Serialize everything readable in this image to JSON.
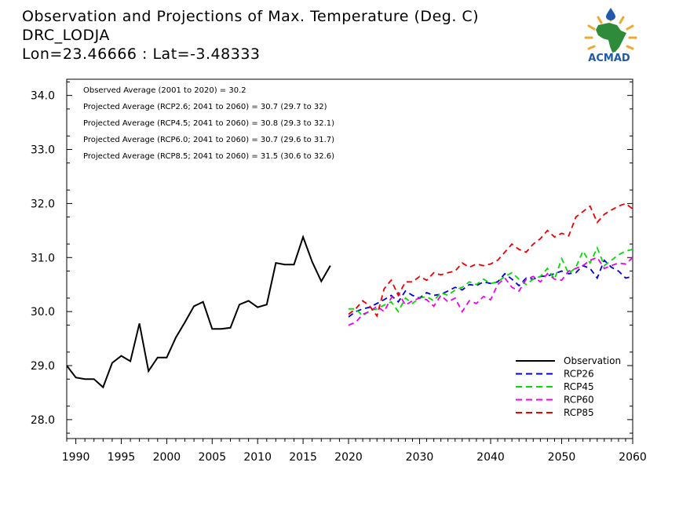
{
  "header": {
    "title_lines": [
      "Observation and Projections of Max. Temperature (Deg. C)",
      "DRC_LODJA",
      "Lon=23.46666 : Lat=-3.48333"
    ],
    "logo_text": "ACMAD"
  },
  "annotations": [
    "Observed Average (2001 to 2020) = 30.2",
    "Projected Average (RCP2.6; 2041 to 2060) = 30.7 (29.7 to 32)",
    "Projected Average (RCP4.5; 2041 to 2060) = 30.8 (29.3 to 32.1)",
    "Projected Average (RCP6.0; 2041 to 2060) = 30.7 (29.6 to 31.7)",
    "Projected Average (RCP8.5; 2041 to 2060) = 31.5 (30.6 to 32.6)"
  ],
  "chart_data": {
    "type": "line",
    "title": "Observation and Projections of Max. Temperature (Deg. C)",
    "subtitle": "DRC_LODJA / Lon=23.46666 : Lat=-3.48333",
    "xlabel": "",
    "ylabel": "",
    "ylim": [
      27.65,
      34.3
    ],
    "y_ticks": [
      28.0,
      29.0,
      30.0,
      31.0,
      32.0,
      33.0,
      34.0
    ],
    "y_tick_labels": [
      "28.0",
      "29.0",
      "30.0",
      "31.0",
      "32.0",
      "33.0",
      "34.0"
    ],
    "x_axis_segments": [
      {
        "range": [
          1989,
          2020
        ],
        "tick_labels": [
          1990,
          1995,
          2000,
          2005,
          2010,
          2015,
          2020
        ]
      },
      {
        "range": [
          2020,
          2060
        ],
        "tick_labels": [
          2030,
          2040,
          2050,
          2060
        ]
      }
    ],
    "grid": false,
    "legend_position": "bottom-right",
    "series": [
      {
        "name": "Observation",
        "color": "#000000",
        "dash": "solid",
        "x": [
          1989,
          1990,
          1991,
          1992,
          1993,
          1994,
          1995,
          1996,
          1997,
          1998,
          1999,
          2000,
          2001,
          2002,
          2003,
          2004,
          2005,
          2006,
          2007,
          2008,
          2009,
          2010,
          2011,
          2012,
          2013,
          2014,
          2015,
          2016,
          2017,
          2018,
          2019
        ],
        "values": [
          29.0,
          28.78,
          28.75,
          28.75,
          28.6,
          29.05,
          29.18,
          29.08,
          29.78,
          28.9,
          29.15,
          29.15,
          29.52,
          29.8,
          30.1,
          30.18,
          29.68,
          29.68,
          29.7,
          30.13,
          30.2,
          30.08,
          30.13,
          30.9,
          30.87,
          30.87,
          31.38,
          30.92,
          30.56,
          30.85,
          null
        ]
      },
      {
        "name": "RCP26",
        "color": "#0000dd",
        "dash": "dashed",
        "x": [
          2020,
          2021,
          2022,
          2023,
          2024,
          2025,
          2026,
          2027,
          2028,
          2029,
          2030,
          2031,
          2032,
          2033,
          2034,
          2035,
          2036,
          2037,
          2038,
          2039,
          2040,
          2041,
          2042,
          2043,
          2044,
          2045,
          2046,
          2047,
          2048,
          2049,
          2050,
          2051,
          2052,
          2053,
          2054,
          2055,
          2056,
          2057,
          2058,
          2059,
          2060
        ],
        "values": [
          29.9,
          30.0,
          30.05,
          30.08,
          30.15,
          30.22,
          30.3,
          30.18,
          30.38,
          30.3,
          30.25,
          30.35,
          30.3,
          30.32,
          30.38,
          30.45,
          30.4,
          30.5,
          30.48,
          30.55,
          30.52,
          30.55,
          30.7,
          30.6,
          30.48,
          30.62,
          30.6,
          30.65,
          30.66,
          30.7,
          30.75,
          30.7,
          30.72,
          30.85,
          30.8,
          30.62,
          30.95,
          30.82,
          30.75,
          30.62,
          30.65
        ]
      },
      {
        "name": "RCP45",
        "color": "#00dd00",
        "dash": "dashed",
        "x": [
          2020,
          2021,
          2022,
          2023,
          2024,
          2025,
          2026,
          2027,
          2028,
          2029,
          2030,
          2031,
          2032,
          2033,
          2034,
          2035,
          2036,
          2037,
          2038,
          2039,
          2040,
          2041,
          2042,
          2043,
          2044,
          2045,
          2046,
          2047,
          2048,
          2049,
          2050,
          2051,
          2052,
          2053,
          2054,
          2055,
          2056,
          2057,
          2058,
          2059,
          2060
        ],
        "values": [
          30.05,
          30.05,
          29.92,
          30.02,
          30.05,
          30.12,
          30.18,
          30.0,
          30.25,
          30.15,
          30.25,
          30.28,
          30.2,
          30.35,
          30.3,
          30.4,
          30.45,
          30.55,
          30.5,
          30.6,
          30.52,
          30.55,
          30.65,
          30.72,
          30.6,
          30.5,
          30.6,
          30.65,
          30.8,
          30.6,
          30.98,
          30.7,
          30.82,
          31.12,
          30.9,
          31.18,
          30.85,
          30.95,
          31.05,
          31.12,
          31.15
        ]
      },
      {
        "name": "RCP60",
        "color": "#ee00ee",
        "dash": "dashed",
        "x": [
          2020,
          2021,
          2022,
          2023,
          2024,
          2025,
          2026,
          2027,
          2028,
          2029,
          2030,
          2031,
          2032,
          2033,
          2034,
          2035,
          2036,
          2037,
          2038,
          2039,
          2040,
          2041,
          2042,
          2043,
          2044,
          2045,
          2046,
          2047,
          2048,
          2049,
          2050,
          2051,
          2052,
          2053,
          2054,
          2055,
          2056,
          2057,
          2058,
          2059,
          2060
        ],
        "values": [
          29.75,
          29.8,
          29.95,
          30.0,
          30.1,
          30.0,
          30.25,
          30.35,
          30.12,
          30.2,
          30.25,
          30.22,
          30.1,
          30.3,
          30.18,
          30.25,
          30.0,
          30.2,
          30.15,
          30.28,
          30.22,
          30.5,
          30.62,
          30.45,
          30.38,
          30.6,
          30.65,
          30.55,
          30.7,
          30.6,
          30.58,
          30.75,
          30.8,
          30.85,
          30.95,
          31.0,
          30.8,
          30.85,
          30.9,
          30.88,
          31.0
        ]
      },
      {
        "name": "RCP85",
        "color": "#ee0000",
        "dash": "dashed",
        "x": [
          2020,
          2021,
          2022,
          2023,
          2024,
          2025,
          2026,
          2027,
          2028,
          2029,
          2030,
          2031,
          2032,
          2033,
          2034,
          2035,
          2036,
          2037,
          2038,
          2039,
          2040,
          2041,
          2042,
          2043,
          2044,
          2045,
          2046,
          2047,
          2048,
          2049,
          2050,
          2051,
          2052,
          2053,
          2054,
          2055,
          2056,
          2057,
          2058,
          2059,
          2060
        ],
        "values": [
          29.95,
          30.05,
          30.2,
          30.1,
          29.92,
          30.42,
          30.58,
          30.3,
          30.55,
          30.55,
          30.65,
          30.58,
          30.72,
          30.68,
          30.72,
          30.75,
          30.9,
          30.82,
          30.88,
          30.85,
          30.88,
          30.95,
          31.1,
          31.25,
          31.15,
          31.1,
          31.25,
          31.35,
          31.5,
          31.38,
          31.45,
          31.4,
          31.75,
          31.85,
          31.95,
          31.65,
          31.8,
          31.88,
          31.95,
          32.0,
          31.9
        ]
      }
    ]
  }
}
